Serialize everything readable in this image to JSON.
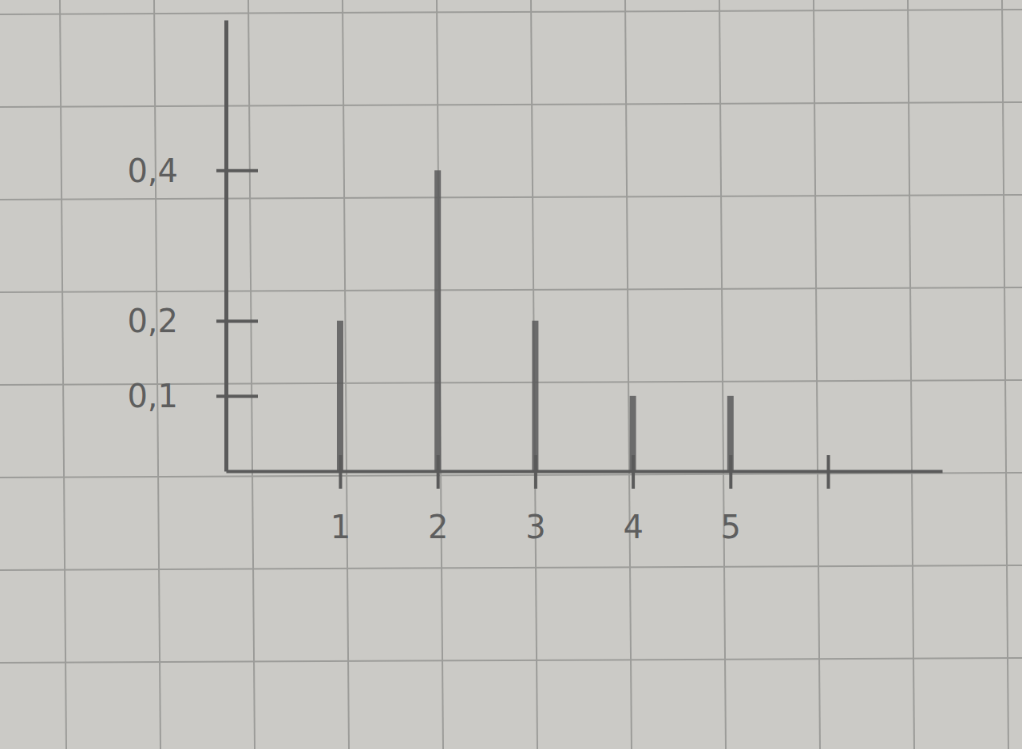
{
  "chart_data": {
    "type": "bar",
    "categories": [
      "1",
      "2",
      "3",
      "4",
      "5",
      null
    ],
    "values": [
      0.2,
      0.4,
      0.2,
      0.1,
      0.1,
      null
    ],
    "color": "#5a5a5a",
    "ylim": [
      0,
      0.6
    ],
    "yticks": [
      {
        "value": 0.1,
        "label": "0,1"
      },
      {
        "value": 0.2,
        "label": "0,2"
      },
      {
        "value": 0.4,
        "label": "0,4"
      }
    ]
  }
}
